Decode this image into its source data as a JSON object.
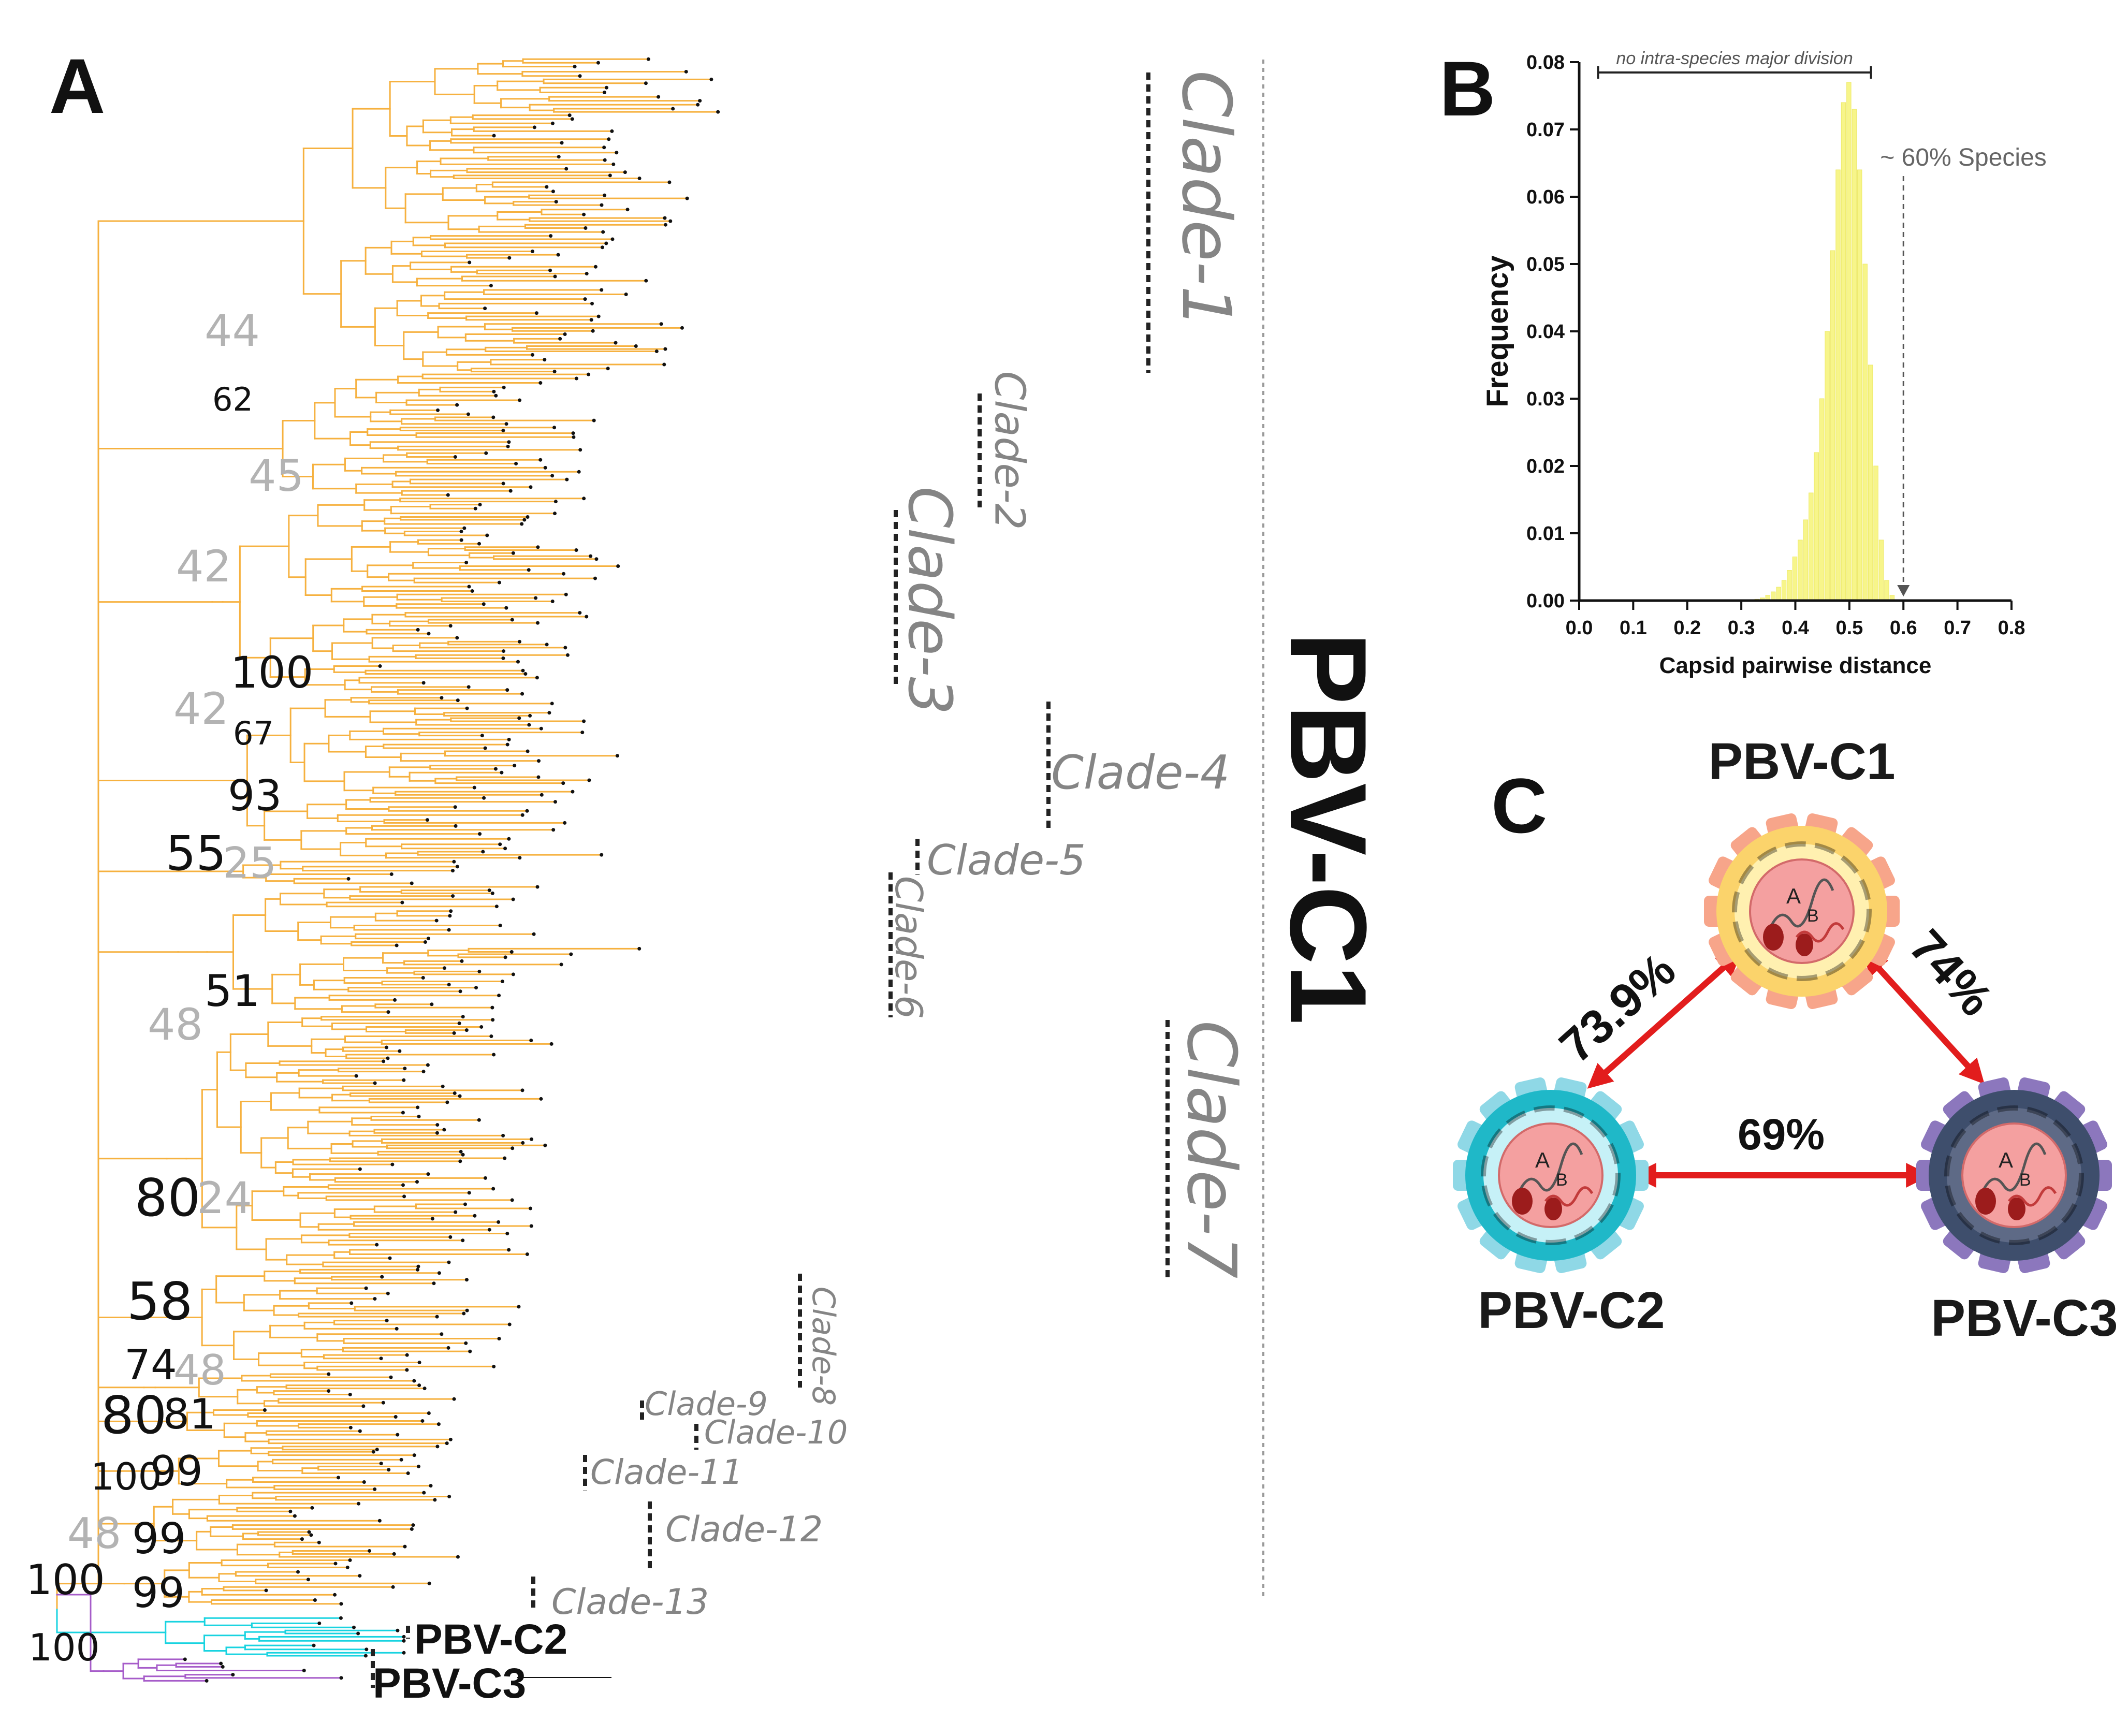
{
  "panels": {
    "a": "A",
    "b": "B",
    "c": "C"
  },
  "tree": {
    "main_label": "PBV-C1",
    "clades": [
      "Clade-1",
      "Clade-2",
      "Clade-3",
      "Clade-4",
      "Clade-5",
      "Clade-6",
      "Clade-7",
      "Clade-8",
      "Clade-9",
      "Clade-10",
      "Clade-11",
      "Clade-12",
      "Clade-13"
    ],
    "groups": [
      "PBV-C2",
      "PBV-C3"
    ],
    "bootstrap": [
      "44",
      "62",
      "45",
      "42",
      "100",
      "42",
      "67",
      "93",
      "55",
      "25",
      "51",
      "48",
      "80",
      "24",
      "58",
      "74",
      "48",
      "80",
      "81",
      "100",
      "99",
      "48",
      "99",
      "100",
      "99",
      "100"
    ],
    "colors": {
      "pbv_c1": "#f6b13f",
      "pbv_c2": "#18d3e0",
      "pbv_c3": "#a65cc9"
    }
  },
  "chart_data": {
    "type": "bar",
    "title": "",
    "xlabel": "Capsid pairwise distance",
    "ylabel": "Frequency",
    "xlim": [
      0.0,
      0.8
    ],
    "ylim": [
      0.0,
      0.08
    ],
    "xticks": [
      "0.0",
      "0.1",
      "0.2",
      "0.3",
      "0.4",
      "0.5",
      "0.6",
      "0.7",
      "0.8"
    ],
    "yticks": [
      "0.00",
      "0.01",
      "0.02",
      "0.03",
      "0.04",
      "0.05",
      "0.06",
      "0.07",
      "0.08"
    ],
    "bar_color": "#f7f58a",
    "bin_width": 0.01,
    "x": [
      0.33,
      0.34,
      0.35,
      0.36,
      0.37,
      0.38,
      0.39,
      0.4,
      0.41,
      0.42,
      0.43,
      0.44,
      0.45,
      0.46,
      0.47,
      0.48,
      0.49,
      0.5,
      0.51,
      0.52,
      0.53,
      0.54,
      0.55,
      0.56,
      0.57,
      0.58
    ],
    "values": [
      0.0002,
      0.0004,
      0.0008,
      0.0013,
      0.002,
      0.003,
      0.0045,
      0.0065,
      0.009,
      0.012,
      0.016,
      0.022,
      0.03,
      0.04,
      0.052,
      0.064,
      0.074,
      0.077,
      0.073,
      0.064,
      0.05,
      0.035,
      0.02,
      0.009,
      0.003,
      0.0008
    ],
    "annotations": {
      "bracket": {
        "text": "no intra-species major division",
        "from": 0.035,
        "to": 0.54
      },
      "threshold": {
        "text": "~ 60% Species",
        "x": 0.6
      }
    }
  },
  "identity": {
    "nodes": [
      "PBV-C1",
      "PBV-C2",
      "PBV-C3"
    ],
    "edges": [
      {
        "from": "PBV-C1",
        "to": "PBV-C2",
        "value": "73.9%"
      },
      {
        "from": "PBV-C1",
        "to": "PBV-C3",
        "value": "74%"
      },
      {
        "from": "PBV-C2",
        "to": "PBV-C3",
        "value": "69%"
      }
    ],
    "segment_labels": [
      "A",
      "B"
    ],
    "colors": {
      "c1": "#f8c85a",
      "c2": "#1fb8c8",
      "c3": "#6a5a92",
      "arrow": "#e21d1d"
    }
  }
}
